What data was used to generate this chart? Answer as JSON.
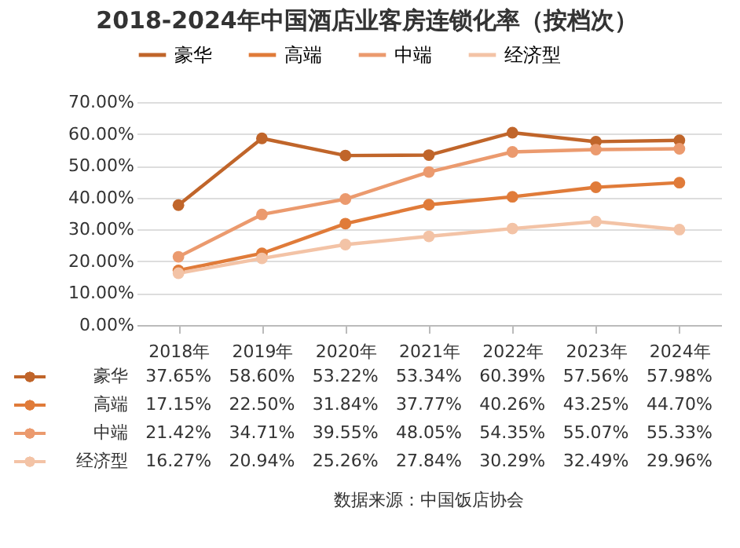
{
  "chart_data": {
    "type": "line",
    "title": "2018-2024年中国酒店业客房连锁化率（按档次）",
    "categories": [
      "2018年",
      "2019年",
      "2020年",
      "2021年",
      "2022年",
      "2023年",
      "2024年"
    ],
    "series": [
      {
        "name": "豪华",
        "color": "#c0652a",
        "values": [
          37.65,
          58.6,
          53.22,
          53.34,
          60.39,
          57.56,
          57.98
        ],
        "value_labels": [
          "37.65%",
          "58.60%",
          "53.22%",
          "53.34%",
          "60.39%",
          "57.56%",
          "57.98%"
        ]
      },
      {
        "name": "高端",
        "color": "#e07b39",
        "values": [
          17.15,
          22.5,
          31.84,
          37.77,
          40.26,
          43.25,
          44.7
        ],
        "value_labels": [
          "17.15%",
          "22.50%",
          "31.84%",
          "37.77%",
          "40.26%",
          "43.25%",
          "44.70%"
        ]
      },
      {
        "name": "中端",
        "color": "#eb9a6e",
        "values": [
          21.42,
          34.71,
          39.55,
          48.05,
          54.35,
          55.07,
          55.33
        ],
        "value_labels": [
          "21.42%",
          "34.71%",
          "39.55%",
          "48.05%",
          "54.35%",
          "55.07%",
          "55.33%"
        ]
      },
      {
        "name": "经济型",
        "color": "#f3c3a6",
        "values": [
          16.27,
          20.94,
          25.26,
          27.84,
          30.29,
          32.49,
          29.96
        ],
        "value_labels": [
          "16.27%",
          "20.94%",
          "25.26%",
          "27.84%",
          "30.29%",
          "32.49%",
          "29.96%"
        ]
      }
    ],
    "ylim": [
      0,
      70
    ],
    "yticks": [
      {
        "value": 0,
        "label": "0.00%"
      },
      {
        "value": 10,
        "label": "10.00%"
      },
      {
        "value": 20,
        "label": "20.00%"
      },
      {
        "value": 30,
        "label": "30.00%"
      },
      {
        "value": 40,
        "label": "40.00%"
      },
      {
        "value": 50,
        "label": "50.00%"
      },
      {
        "value": 60,
        "label": "60.00%"
      },
      {
        "value": 70,
        "label": "70.00%"
      }
    ],
    "grid": "y",
    "legend": "top",
    "marker": "circle",
    "annotations": [
      "数据来源：中国饭店协会"
    ]
  }
}
